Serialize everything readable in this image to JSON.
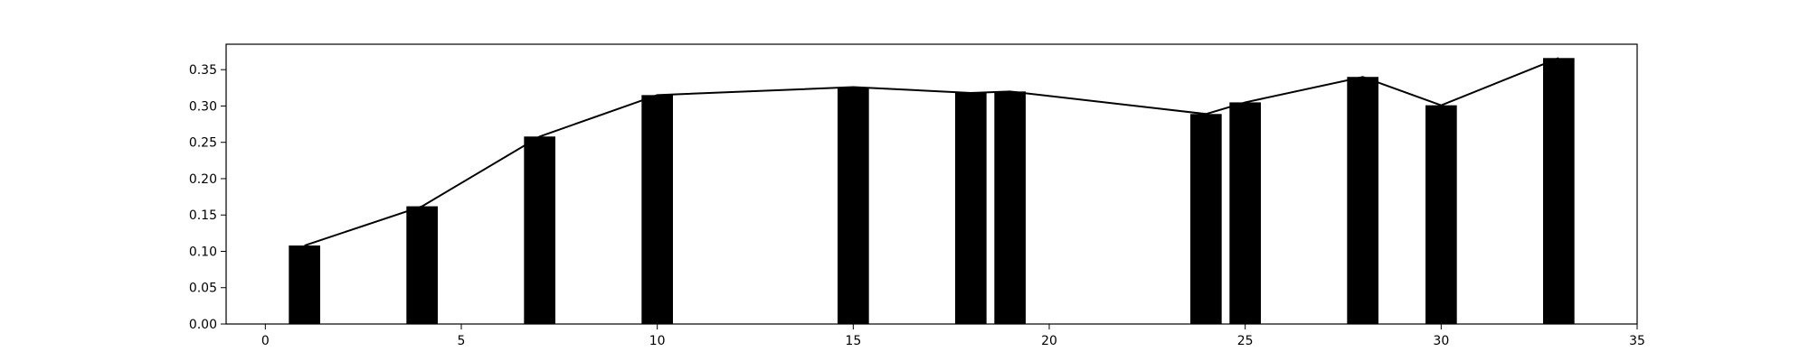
{
  "chart_data": {
    "type": "bar",
    "title": "",
    "xlabel": "",
    "ylabel": "",
    "xlim": [
      -1,
      35
    ],
    "ylim": [
      0,
      0.385
    ],
    "xticks": [
      0,
      5,
      10,
      15,
      20,
      25,
      30,
      35
    ],
    "yticks": [
      0.0,
      0.05,
      0.1,
      0.15,
      0.2,
      0.25,
      0.3,
      0.35
    ],
    "xtick_labels": [
      "0",
      "5",
      "10",
      "15",
      "20",
      "25",
      "30",
      "35"
    ],
    "ytick_labels": [
      "0.00",
      "0.05",
      "0.10",
      "0.15",
      "0.20",
      "0.25",
      "0.30",
      "0.35"
    ],
    "bar_width": 0.8,
    "grid": false,
    "legend": "none",
    "bar_color": "#000000",
    "line_color": "#000000",
    "series": [
      {
        "type": "bar",
        "x": [
          1,
          4,
          7,
          10,
          15,
          18,
          19,
          24,
          25,
          28,
          30,
          33
        ],
        "values": [
          0.108,
          0.162,
          0.258,
          0.315,
          0.326,
          0.318,
          0.32,
          0.289,
          0.305,
          0.34,
          0.301,
          0.366
        ]
      },
      {
        "type": "line",
        "x": [
          1,
          4,
          7,
          10,
          15,
          18,
          19,
          24,
          25,
          28,
          30,
          33
        ],
        "values": [
          0.108,
          0.162,
          0.258,
          0.315,
          0.326,
          0.318,
          0.32,
          0.289,
          0.305,
          0.34,
          0.301,
          0.366
        ]
      }
    ]
  }
}
